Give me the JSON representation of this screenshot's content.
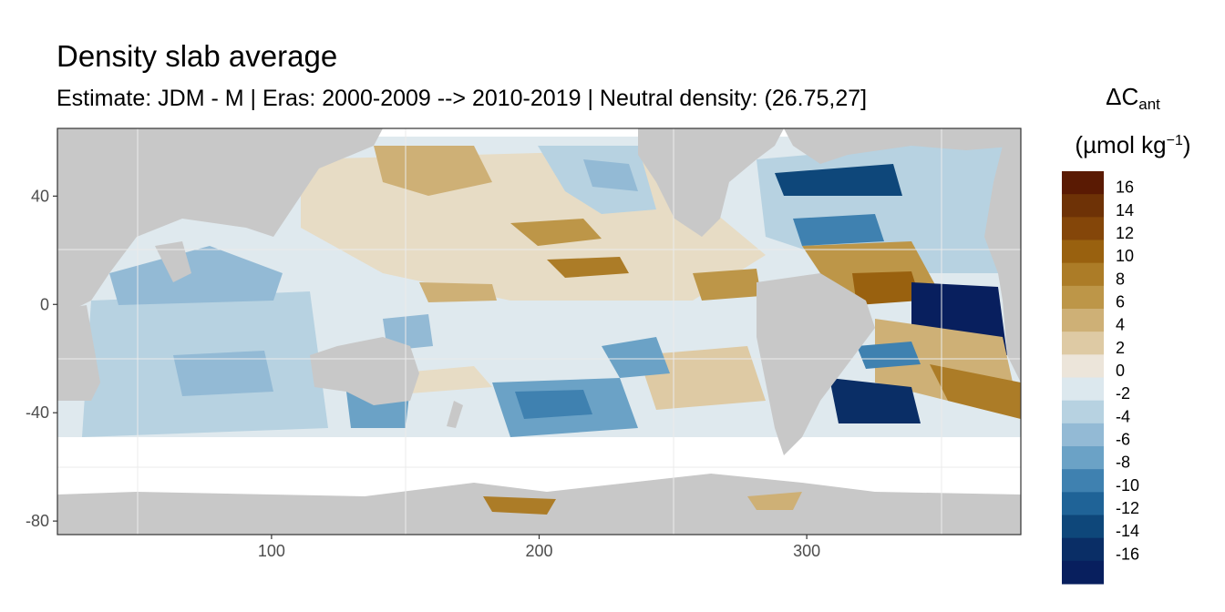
{
  "plot": {
    "title": "Density slab average",
    "subtitle": "Estimate: JDM - M | Eras: 2000-2009 --> 2010-2019 | Neutral density: (26.75,27]"
  },
  "chart_data": {
    "type": "heatmap",
    "xlim": [
      20,
      380
    ],
    "ylim": [
      -85,
      65
    ],
    "x_ticks": [
      "100",
      "200",
      "300"
    ],
    "x_tick_values": [
      100,
      200,
      300
    ],
    "y_ticks": [
      "40",
      "0",
      "-40",
      "-80"
    ],
    "y_tick_values": [
      40,
      0,
      -40,
      -80
    ],
    "grid": true,
    "legend_position": "right",
    "colorbar": {
      "title_main": "ΔC",
      "title_sub": "ant",
      "units_pre": "(µmol kg",
      "units_sup": "−1",
      "units_post": ")",
      "labels": [
        "16",
        "14",
        "12",
        "10",
        "8",
        "6",
        "4",
        "2",
        "0",
        "-2",
        "-4",
        "-6",
        "-8",
        "-10",
        "-12",
        "-14",
        "-16"
      ],
      "colors": [
        "#5a1a03",
        "#6e3206",
        "#844609",
        "#99610f",
        "#ac7c27",
        "#bd9648",
        "#ceb076",
        "#decaa4",
        "#ece5da",
        "#dce8ee",
        "#b7d2e1",
        "#93bad5",
        "#6ba2c6",
        "#3f81b0",
        "#1f6397",
        "#0e477a",
        "#0a2e66",
        "#081f5e"
      ]
    }
  }
}
